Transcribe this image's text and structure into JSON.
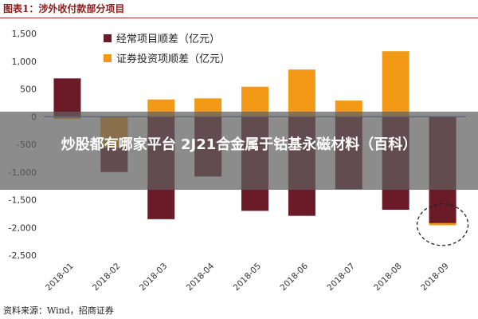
{
  "figure_title": "图表1：涉外收付款部分项目",
  "source": "资料来源：Wind，招商证券",
  "overlay_text": "炒股都有哪家平台 2J21合金属于钴基永磁材料（百科）",
  "colors": {
    "series1": "#6b1a28",
    "series2": "#f29a16",
    "zero_line": "#4f6fb0",
    "circle": "#222222"
  },
  "chart_data": {
    "type": "bar",
    "title": "",
    "xlabel": "",
    "ylabel": "",
    "categories": [
      "2018-01",
      "2018-02",
      "2018-03",
      "2018-04",
      "2018-05",
      "2018-06",
      "2018-07",
      "2018-08",
      "2018-09"
    ],
    "series": [
      {
        "name": "经常项目顺差（亿元）",
        "values": [
          690,
          -1000,
          -1850,
          -1080,
          -1700,
          -1790,
          -1310,
          -1680,
          -1920
        ]
      },
      {
        "name": "证券投资项顺差（亿元）",
        "values": [
          -40,
          -560,
          310,
          330,
          540,
          850,
          290,
          1180,
          -1960
        ]
      }
    ],
    "ylim": [
      -2500,
      1500
    ],
    "yticks": [
      -2500,
      -2000,
      -1500,
      -1000,
      -500,
      0,
      500,
      1000,
      1500
    ],
    "ytick_labels": [
      "-2,500",
      "-2,000",
      "-1,500",
      "-1,000",
      "-500",
      "0",
      "500",
      "1,000",
      "1,500"
    ],
    "legend_position": "top-left",
    "annotation": "dashed circle around 2018-09"
  }
}
